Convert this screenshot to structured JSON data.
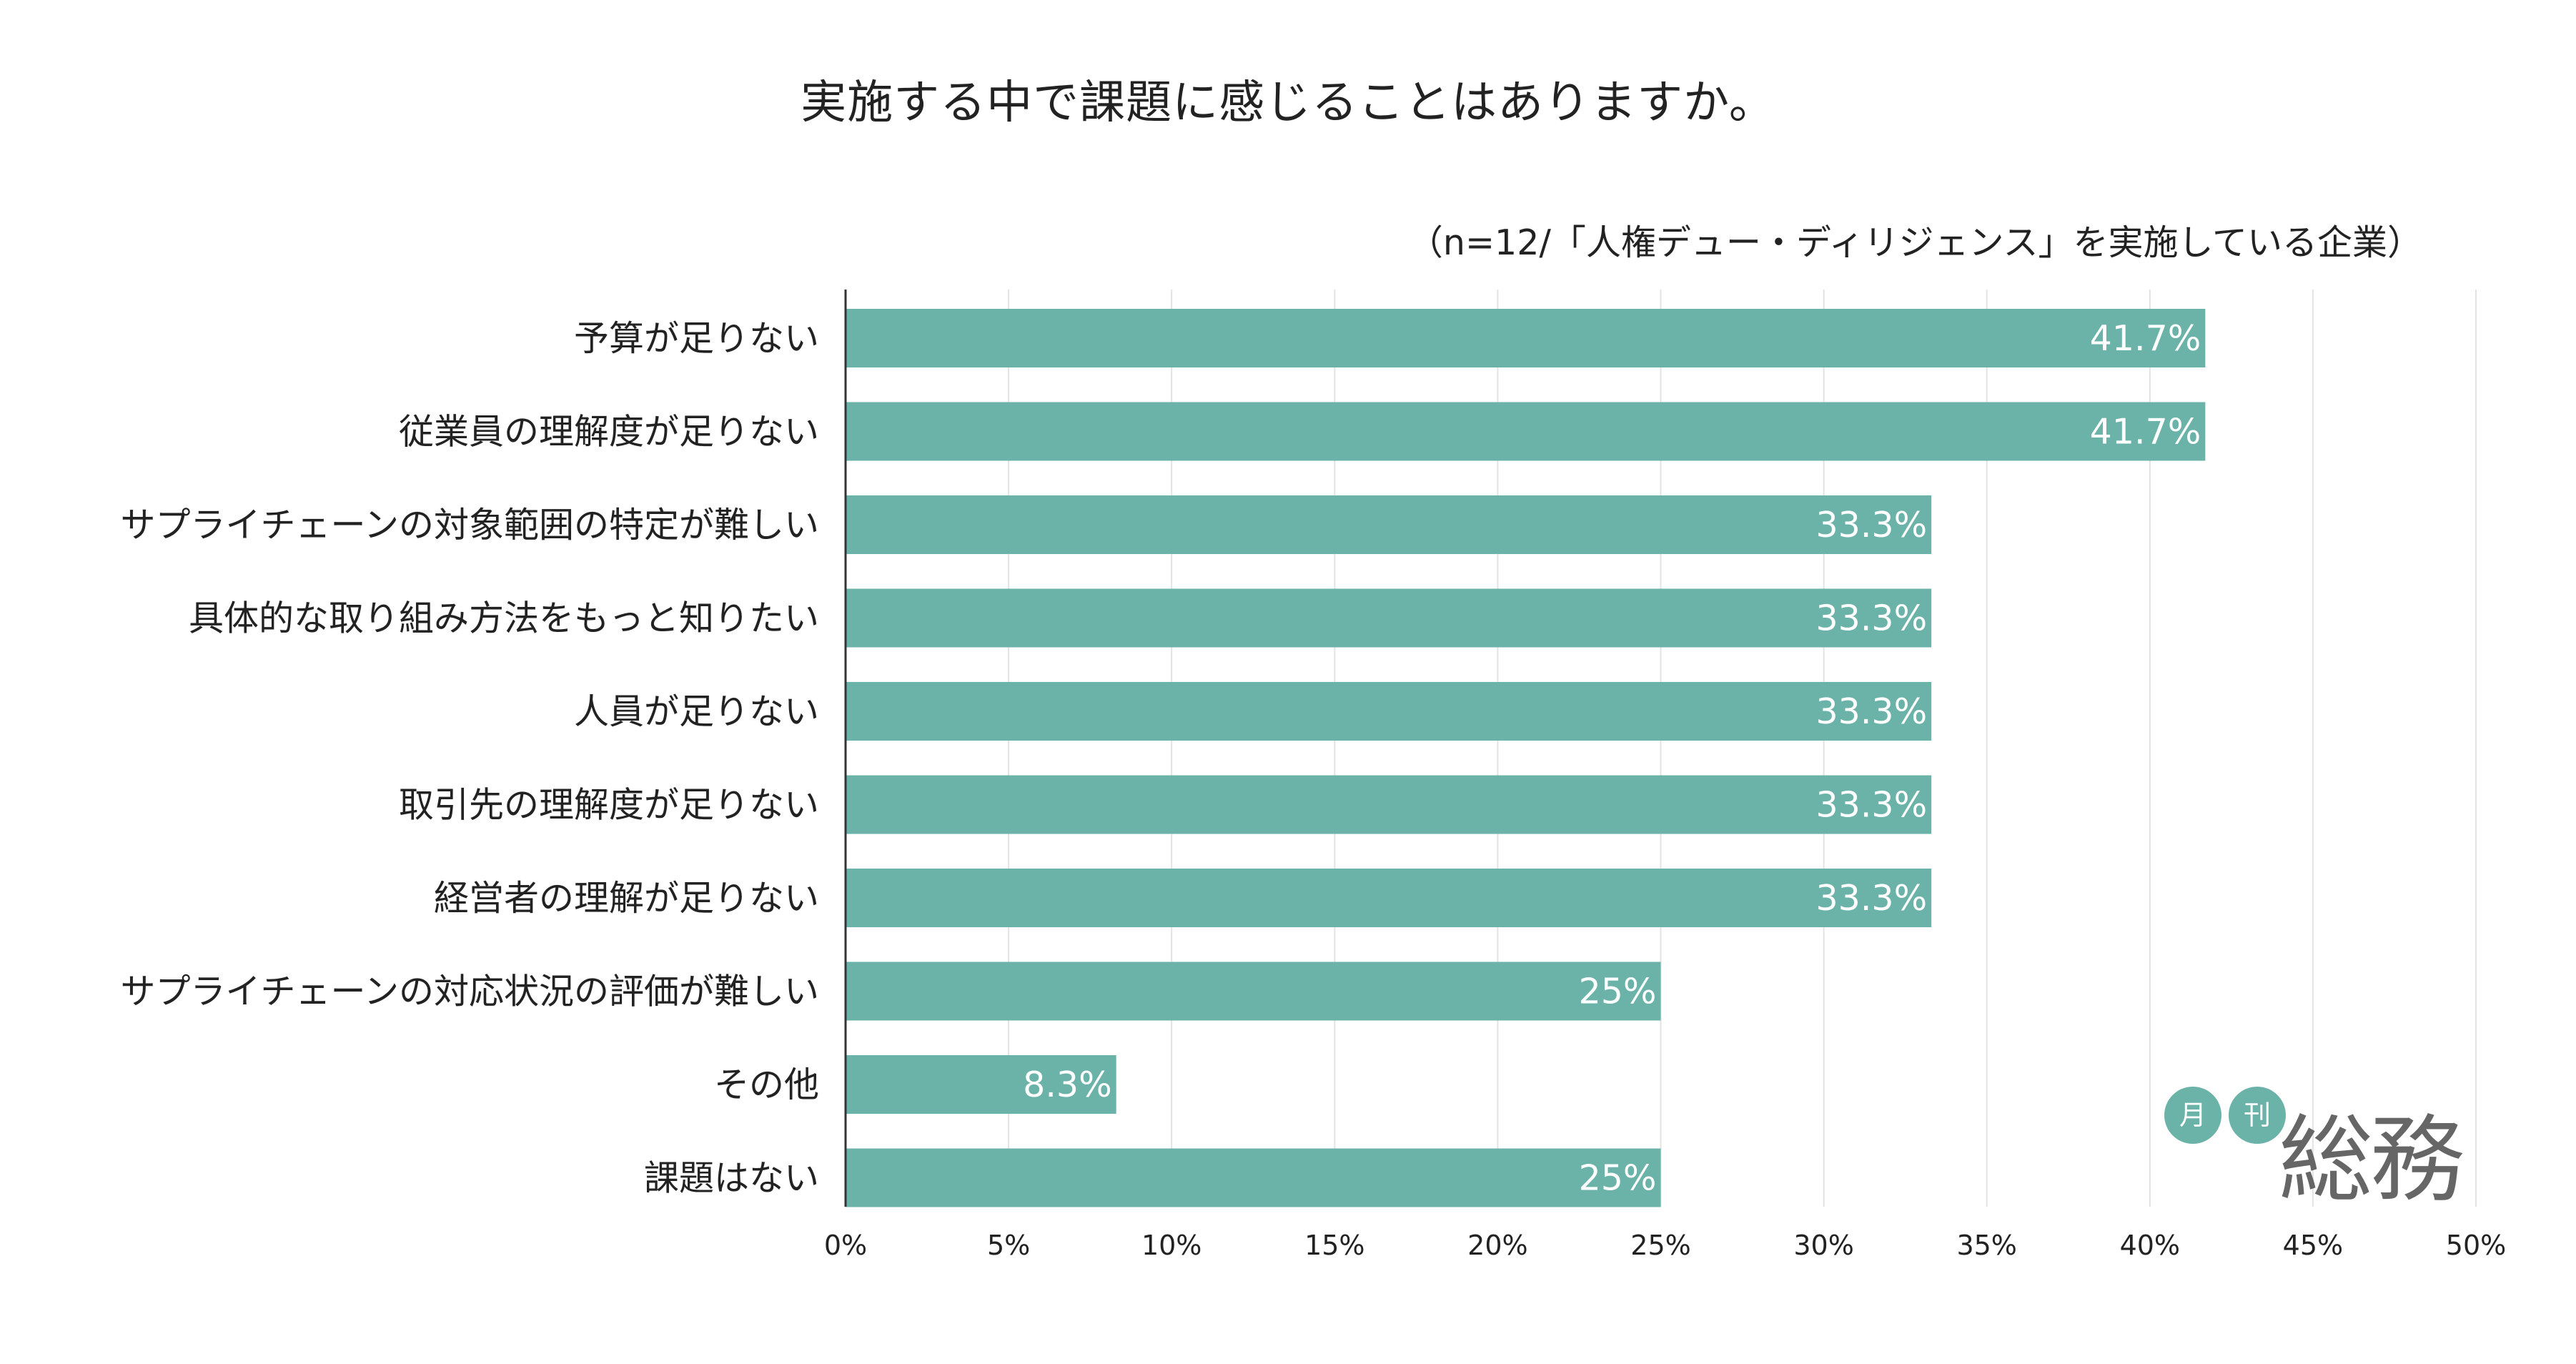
{
  "chart_data": {
    "type": "bar",
    "orientation": "horizontal",
    "title": "実施する中で課題に感じることはありますか。",
    "subtitle": "（n=12/「人権デュー・ディリジェンス」を実施している企業）",
    "categories": [
      "予算が足りない",
      "従業員の理解度が足りない",
      "サプライチェーンの対象範囲の特定が難しい",
      "具体的な取り組み方法をもっと知りたい",
      "人員が足りない",
      "取引先の理解度が足りない",
      "経営者の理解が足りない",
      "サプライチェーンの対応状況の評価が難しい",
      "その他",
      "課題はない"
    ],
    "values": [
      41.7,
      41.7,
      33.3,
      33.3,
      33.3,
      33.3,
      33.3,
      25,
      8.3,
      25
    ],
    "value_labels": [
      "41.7%",
      "41.7%",
      "33.3%",
      "33.3%",
      "33.3%",
      "33.3%",
      "33.3%",
      "25%",
      "8.3%",
      "25%"
    ],
    "xlim": [
      0,
      50
    ],
    "xticks": [
      0,
      5,
      10,
      15,
      20,
      25,
      30,
      35,
      40,
      45,
      50
    ],
    "xtick_labels": [
      "0%",
      "5%",
      "10%",
      "15%",
      "20%",
      "25%",
      "30%",
      "35%",
      "40%",
      "45%",
      "50%"
    ],
    "grid": true,
    "xlabel": "",
    "ylabel": "",
    "bar_color": "#6bb3a8"
  },
  "logo": {
    "badge1": "月",
    "badge2": "刊",
    "name": "総務"
  }
}
